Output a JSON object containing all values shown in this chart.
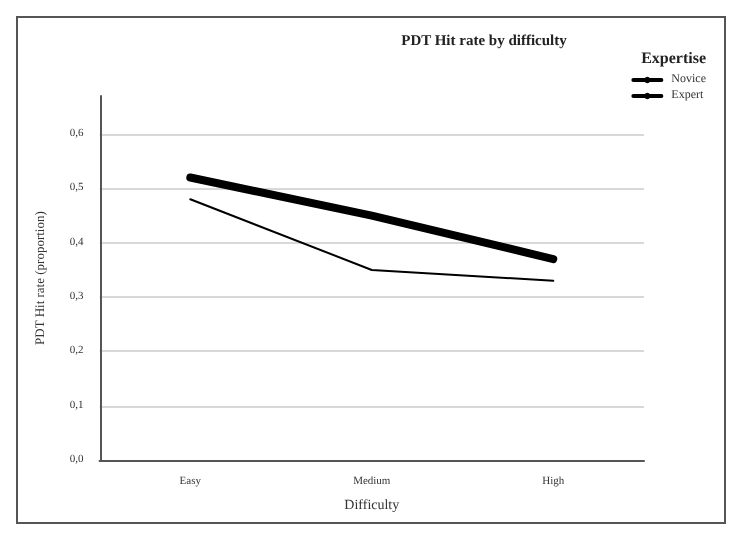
{
  "chart_data": {
    "type": "line",
    "title": "PDT Hit rate by difficulty",
    "xlabel": "Difficulty",
    "ylabel": "PDT Hit rate (proportion)",
    "legend_title": "Expertise",
    "legend": "top right",
    "grid": "y",
    "marker": "none",
    "line_style": "solid",
    "categories": [
      "Easy",
      "Medium",
      "High"
    ],
    "series": [
      {
        "name": "Novice",
        "color": "#000000",
        "values": [
          0.48,
          0.35,
          0.33
        ]
      },
      {
        "name": "Expert",
        "color": "#000000",
        "values": [
          0.52,
          0.45,
          0.37
        ]
      }
    ],
    "ylim": [
      0,
      0.67
    ],
    "yticks": [
      {
        "value": 0,
        "label": "0,0"
      },
      {
        "value": 0.1,
        "label": "0,1"
      },
      {
        "value": 0.2,
        "label": "0,2"
      },
      {
        "value": 0.3,
        "label": "0,3"
      },
      {
        "value": 0.4,
        "label": "0,4"
      },
      {
        "value": 0.5,
        "label": "0,5"
      },
      {
        "value": 0.6,
        "label": "0,6"
      }
    ]
  }
}
